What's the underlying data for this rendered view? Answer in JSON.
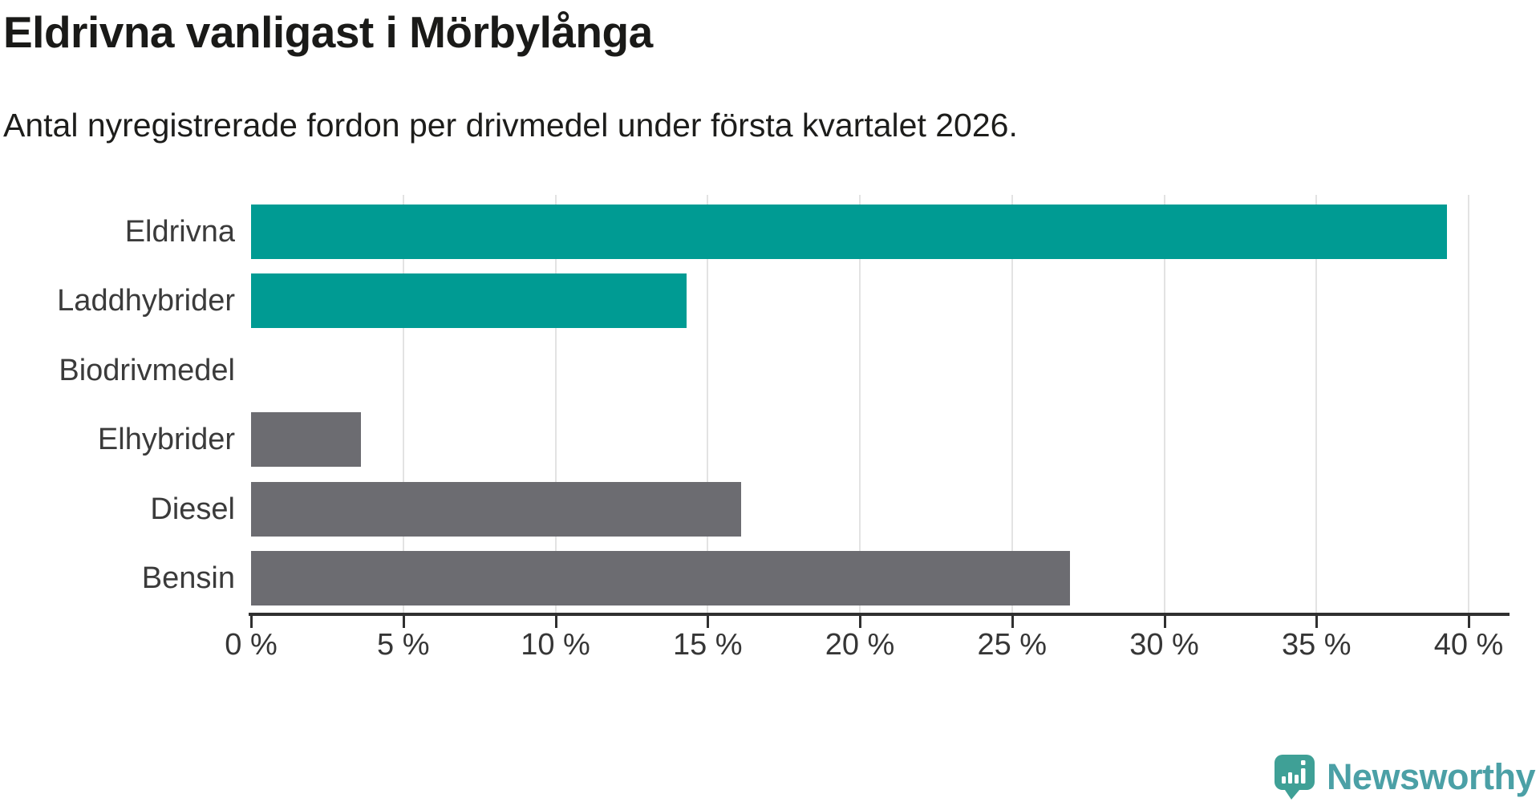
{
  "chart_data": {
    "type": "bar",
    "orientation": "horizontal",
    "title": "Eldrivna vanligast i Mörbylånga",
    "subtitle": "Antal nyregistrerade fordon per drivmedel under första kvartalet 2026.",
    "categories": [
      "Eldrivna",
      "Laddhybrider",
      "Biodrivmedel",
      "Elhybrider",
      "Diesel",
      "Bensin"
    ],
    "values": [
      39.3,
      14.3,
      0,
      3.6,
      16.1,
      26.9
    ],
    "unit": "%",
    "bar_colors": [
      "#009b93",
      "#009b93",
      "#009b93",
      "#6c6c71",
      "#6c6c71",
      "#6c6c71"
    ],
    "xlim": [
      0,
      40
    ],
    "x_ticks": [
      0,
      5,
      10,
      15,
      20,
      25,
      30,
      35,
      40
    ],
    "x_tick_labels": [
      "0 %",
      "5 %",
      "10 %",
      "15 %",
      "20 %",
      "25 %",
      "30 %",
      "35 %",
      "40 %"
    ],
    "grid": "vertical-only",
    "legend": "none"
  },
  "colors": {
    "accent_teal": "#009b93",
    "neutral_gray": "#6c6c71",
    "gridline": "#e3e3e3",
    "axis": "#303030",
    "text_dark": "#1a1a18",
    "label_gray": "#3b3b3b"
  },
  "branding": {
    "logo_text": "Newsworthy",
    "logo_icon": "newsworthy-speech-bubble-bar-chart-icon",
    "logo_icon_color": "#3fa096",
    "logo_text_color": "#4ba0a6"
  }
}
